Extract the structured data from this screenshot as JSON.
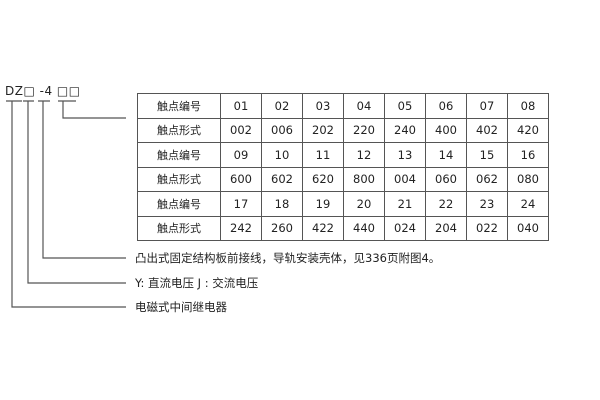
{
  "model_code": "DZ□ -4 □□",
  "table": {
    "rows": [
      {
        "header": "触点编号",
        "cells": [
          "01",
          "02",
          "03",
          "04",
          "05",
          "06",
          "07",
          "08"
        ]
      },
      {
        "header": "触点形式",
        "cells": [
          "002",
          "006",
          "202",
          "220",
          "240",
          "400",
          "402",
          "420"
        ]
      },
      {
        "header": "触点编号",
        "cells": [
          "09",
          "10",
          "11",
          "12",
          "13",
          "14",
          "15",
          "16"
        ]
      },
      {
        "header": "触点形式",
        "cells": [
          "600",
          "602",
          "620",
          "800",
          "004",
          "060",
          "062",
          "080"
        ]
      },
      {
        "header": "触点编号",
        "cells": [
          "17",
          "18",
          "19",
          "20",
          "21",
          "22",
          "23",
          "24"
        ]
      },
      {
        "header": "触点形式",
        "cells": [
          "242",
          "260",
          "422",
          "440",
          "024",
          "204",
          "022",
          "040"
        ]
      }
    ]
  },
  "labels": {
    "structure": "凸出式固定结构板前接线，导轨安装壳体，见336页附图4。",
    "voltage": "Y: 直流电压   J : 交流电压",
    "type": "电磁式中间继电器"
  }
}
